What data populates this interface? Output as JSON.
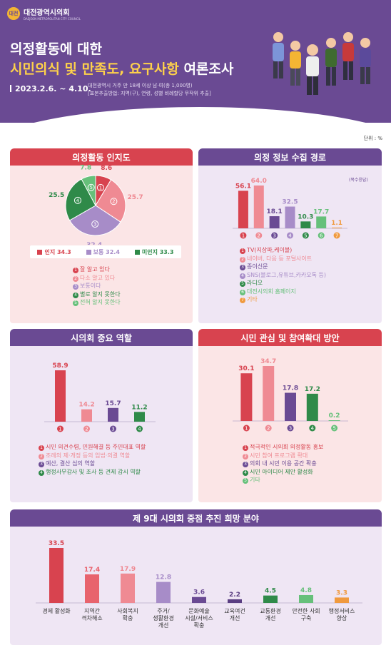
{
  "header": {
    "org_name": "대전광역시의회",
    "org_sub": "DAEJEON METROPOLITAN CITY COUNCIL",
    "title_line1": "의정활동에 대한",
    "title_line2_highlight": "시민의식 및 만족도, 요구사항",
    "title_line2_rest": " 여론조사",
    "date": "2023.2.6. ~ 4.10.",
    "method_line1": "대전광역시 거주 만 18세 이상 남·여(총 1,000명)",
    "method_line2": "[표본추출방법: 지역(구), 연령, 성별 비례할당 무작위 추출]"
  },
  "unit": "단위 : %",
  "colors": {
    "red": "#d8434f",
    "pink": "#ef8a93",
    "purple": "#6a4a93",
    "lavender": "#a78cc8",
    "green": "#2f8a49",
    "light_green": "#66c07a",
    "orange": "#f09a3e"
  },
  "panels": {
    "awareness": {
      "title": "의정활동 인지도",
      "legend": [
        {
          "label": "인지 34.3",
          "color": "#d8434f"
        },
        {
          "label": "보통 32.4",
          "color": "#a78cc8"
        },
        {
          "label": "미인지 33.3",
          "color": "#2f8a49"
        }
      ],
      "items": [
        {
          "num": "1",
          "text": "잘 알고 있다",
          "color": "#d8434f"
        },
        {
          "num": "2",
          "text": "다소 알고 있다",
          "color": "#ef8a93"
        },
        {
          "num": "3",
          "text": "보통이다",
          "color": "#a78cc8"
        },
        {
          "num": "4",
          "text": "별로 알지 못한다",
          "color": "#2f8a49"
        },
        {
          "num": "5",
          "text": "전혀 알지 못한다",
          "color": "#66c07a"
        }
      ]
    },
    "info": {
      "title": "의정 정보 수집 경로",
      "note": "(복수응답)",
      "items": [
        {
          "num": "1",
          "text": "TV(지상파,케이블)",
          "color": "#d8434f"
        },
        {
          "num": "2",
          "text": "네이버, 다음 등 포털사이트",
          "color": "#ef8a93"
        },
        {
          "num": "3",
          "text": "종이신문",
          "color": "#6a4a93"
        },
        {
          "num": "4",
          "text": "SNS(블로그,유튜브,카카오톡 등)",
          "color": "#a78cc8"
        },
        {
          "num": "5",
          "text": "라디오",
          "color": "#2f8a49"
        },
        {
          "num": "6",
          "text": "대전시의회 홈페이지",
          "color": "#66c07a"
        },
        {
          "num": "7",
          "text": "기타",
          "color": "#f09a3e"
        }
      ]
    },
    "role": {
      "title": "시의회 중요 역할",
      "items": [
        {
          "num": "1",
          "text": "시민 의견수렴, 민원해결 등 주민대표 역할",
          "color": "#d8434f"
        },
        {
          "num": "2",
          "text": "조례의 제·개정 등의 입법·의결 역할",
          "color": "#ef8a93"
        },
        {
          "num": "3",
          "text": "예산, 결산 심의 역할",
          "color": "#6a4a93"
        },
        {
          "num": "4",
          "text": "행정사무감사 및 조사 등 견제 감시 역할",
          "color": "#2f8a49"
        }
      ]
    },
    "participation": {
      "title": "시민 관심 및 참여확대 방안",
      "items": [
        {
          "num": "1",
          "text": "적극적인 시의회 의정활동 홍보",
          "color": "#d8434f"
        },
        {
          "num": "2",
          "text": "시민 참여 프로그램 확대",
          "color": "#ef8a93"
        },
        {
          "num": "3",
          "text": "의회 내 시민 이용 공간 확충",
          "color": "#6a4a93"
        },
        {
          "num": "4",
          "text": "시민 아이디어 제안 활성화",
          "color": "#2f8a49"
        },
        {
          "num": "5",
          "text": "기타",
          "color": "#66c07a"
        }
      ]
    },
    "focus": {
      "title": "제 9대 시의회 중점 추진 희망 분야"
    }
  },
  "chart_data": [
    {
      "type": "pie",
      "title": "의정활동 인지도",
      "categories": [
        "1",
        "2",
        "3",
        "4",
        "5"
      ],
      "values": [
        8.6,
        25.7,
        32.4,
        25.5,
        7.8
      ],
      "colors": [
        "#d8434f",
        "#ef8a93",
        "#a78cc8",
        "#2f8a49",
        "#66c07a"
      ]
    },
    {
      "type": "bar",
      "title": "의정 정보 수집 경로",
      "categories": [
        "1",
        "2",
        "3",
        "4",
        "5",
        "6",
        "7"
      ],
      "values": [
        56.1,
        64.0,
        18.1,
        32.5,
        10.3,
        17.7,
        1.1
      ],
      "colors": [
        "#d8434f",
        "#ef8a93",
        "#6a4a93",
        "#a78cc8",
        "#2f8a49",
        "#66c07a",
        "#f09a3e"
      ]
    },
    {
      "type": "bar",
      "title": "시의회 중요 역할",
      "categories": [
        "1",
        "2",
        "3",
        "4"
      ],
      "values": [
        58.9,
        14.2,
        15.7,
        11.2
      ],
      "colors": [
        "#d8434f",
        "#ef8a93",
        "#6a4a93",
        "#2f8a49"
      ]
    },
    {
      "type": "bar",
      "title": "시민 관심 및 참여확대 방안",
      "categories": [
        "1",
        "2",
        "3",
        "4",
        "5"
      ],
      "values": [
        30.1,
        34.7,
        17.8,
        17.2,
        0.2
      ],
      "colors": [
        "#d8434f",
        "#ef8a93",
        "#6a4a93",
        "#2f8a49",
        "#66c07a"
      ]
    },
    {
      "type": "bar",
      "title": "제 9대 시의회 중점 추진 희망 분야",
      "categories": [
        "경제 활성화",
        "지역간 격차해소",
        "사회복지 확충",
        "주거/ 생활환경 개선",
        "문화예술 시설/서비스 확충",
        "교육여건 개선",
        "교통환경 개선",
        "안전한 사회 구축",
        "행정서비스 향상"
      ],
      "values": [
        33.5,
        17.4,
        17.9,
        12.8,
        3.6,
        2.2,
        4.5,
        4.8,
        3.3
      ],
      "colors": [
        "#d8434f",
        "#e8636d",
        "#ef8a93",
        "#a78cc8",
        "#6a4a93",
        "#5a3e82",
        "#2f8a49",
        "#66c07a",
        "#f09a3e"
      ]
    }
  ]
}
